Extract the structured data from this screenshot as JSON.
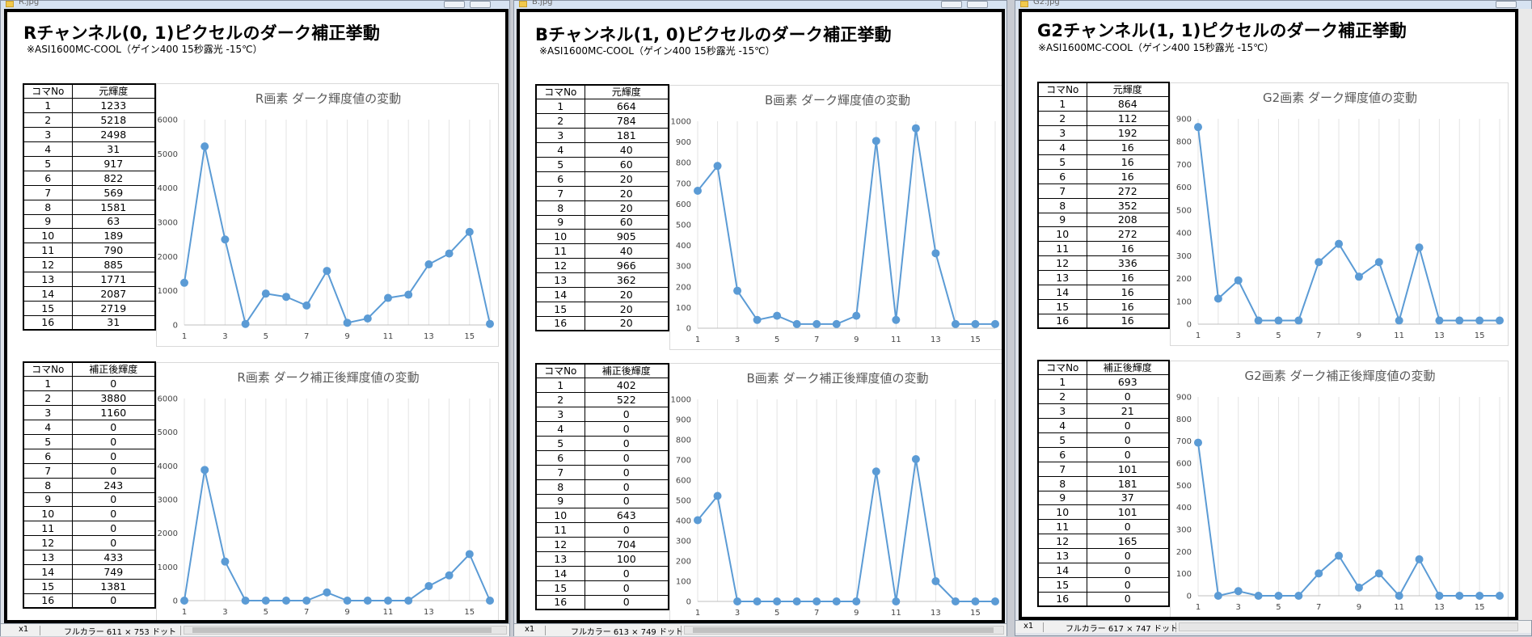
{
  "windows": [
    {
      "id": "r",
      "title": "R.jpg",
      "heading": "Rチャンネル(0, 1)ピクセルのダーク補正挙動",
      "subtitle": "※ASI1600MC-COOL（ゲイン400 15秒露光 -15℃）",
      "status": {
        "zoom": "x1",
        "info": "フルカラー  611 × 753 ドット"
      }
    },
    {
      "id": "b",
      "title": "B.jpg",
      "heading": "Bチャンネル(1, 0)ピクセルのダーク補正挙動",
      "subtitle": "※ASI1600MC-COOL（ゲイン400 15秒露光 -15℃）",
      "status": {
        "zoom": "x1",
        "info": "フルカラー  613 × 749 ドット"
      }
    },
    {
      "id": "g2",
      "title": "G2.jpg",
      "heading": "G2チャンネル(1, 1)ピクセルのダーク補正挙動",
      "subtitle": "※ASI1600MC-COOL（ゲイン400 15秒露光 -15℃）",
      "status": {
        "zoom": "x1",
        "info": "フルカラー  617 × 747 ドット"
      }
    }
  ],
  "tables": {
    "r_raw": {
      "h1": "コマNo",
      "h2": "元輝度"
    },
    "r_cor": {
      "h1": "コマNo",
      "h2": "補正後輝度"
    },
    "b_raw": {
      "h1": "コマNo",
      "h2": "元輝度"
    },
    "b_cor": {
      "h1": "コマNo",
      "h2": "補正後輝度"
    },
    "g2_raw": {
      "h1": "コマNo",
      "h2": "元輝度"
    },
    "g2_cor": {
      "h1": "コマNo",
      "h2": "補正後輝度"
    }
  },
  "chart_data": [
    {
      "id": "r_raw",
      "type": "line",
      "title": "R画素  ダーク輝度値の変動",
      "x": [
        1,
        2,
        3,
        4,
        5,
        6,
        7,
        8,
        9,
        10,
        11,
        12,
        13,
        14,
        15,
        16
      ],
      "values": [
        1233,
        5218,
        2498,
        31,
        917,
        822,
        569,
        1581,
        63,
        189,
        790,
        885,
        1771,
        2087,
        2719,
        31
      ],
      "ylim": [
        0,
        6000
      ],
      "yticks": [
        0,
        1000,
        2000,
        3000,
        4000,
        5000,
        6000
      ],
      "xticks": [
        1,
        3,
        5,
        7,
        9,
        11,
        13,
        15
      ],
      "grid": "vertical",
      "color": "#5b9bd5"
    },
    {
      "id": "r_cor",
      "type": "line",
      "title": "R画素  ダーク補正後輝度値の変動",
      "x": [
        1,
        2,
        3,
        4,
        5,
        6,
        7,
        8,
        9,
        10,
        11,
        12,
        13,
        14,
        15,
        16
      ],
      "values": [
        0,
        3880,
        1160,
        0,
        0,
        0,
        0,
        243,
        0,
        0,
        0,
        0,
        433,
        749,
        1381,
        0
      ],
      "ylim": [
        0,
        6000
      ],
      "yticks": [
        0,
        1000,
        2000,
        3000,
        4000,
        5000,
        6000
      ],
      "xticks": [
        1,
        3,
        5,
        7,
        9,
        11,
        13,
        15
      ],
      "grid": "vertical",
      "color": "#5b9bd5"
    },
    {
      "id": "b_raw",
      "type": "line",
      "title": "B画素  ダーク輝度値の変動",
      "x": [
        1,
        2,
        3,
        4,
        5,
        6,
        7,
        8,
        9,
        10,
        11,
        12,
        13,
        14,
        15,
        16
      ],
      "values": [
        664,
        784,
        181,
        40,
        60,
        20,
        20,
        20,
        60,
        905,
        40,
        966,
        362,
        20,
        20,
        20
      ],
      "ylim": [
        0,
        1000
      ],
      "yticks": [
        0,
        100,
        200,
        300,
        400,
        500,
        600,
        700,
        800,
        900,
        1000
      ],
      "xticks": [
        1,
        3,
        5,
        7,
        9,
        11,
        13,
        15
      ],
      "grid": "vertical",
      "color": "#5b9bd5"
    },
    {
      "id": "b_cor",
      "type": "line",
      "title": "B画素  ダーク補正後輝度値の変動",
      "x": [
        1,
        2,
        3,
        4,
        5,
        6,
        7,
        8,
        9,
        10,
        11,
        12,
        13,
        14,
        15,
        16
      ],
      "values": [
        402,
        522,
        0,
        0,
        0,
        0,
        0,
        0,
        0,
        643,
        0,
        704,
        100,
        0,
        0,
        0
      ],
      "ylim": [
        0,
        1000
      ],
      "yticks": [
        0,
        100,
        200,
        300,
        400,
        500,
        600,
        700,
        800,
        900,
        1000
      ],
      "xticks": [
        1,
        3,
        5,
        7,
        9,
        11,
        13,
        15
      ],
      "grid": "vertical",
      "color": "#5b9bd5"
    },
    {
      "id": "g2_raw",
      "type": "line",
      "title": "G2画素  ダーク輝度値の変動",
      "x": [
        1,
        2,
        3,
        4,
        5,
        6,
        7,
        8,
        9,
        10,
        11,
        12,
        13,
        14,
        15,
        16
      ],
      "values": [
        864,
        112,
        192,
        16,
        16,
        16,
        272,
        352,
        208,
        272,
        16,
        336,
        16,
        16,
        16,
        16
      ],
      "ylim": [
        0,
        900
      ],
      "yticks": [
        0,
        100,
        200,
        300,
        400,
        500,
        600,
        700,
        800,
        900
      ],
      "xticks": [
        1,
        3,
        5,
        7,
        9,
        11,
        13,
        15
      ],
      "grid": "vertical",
      "color": "#5b9bd5"
    },
    {
      "id": "g2_cor",
      "type": "line",
      "title": "G2画素  ダーク補正後輝度値の変動",
      "x": [
        1,
        2,
        3,
        4,
        5,
        6,
        7,
        8,
        9,
        10,
        11,
        12,
        13,
        14,
        15,
        16
      ],
      "values": [
        693,
        0,
        21,
        0,
        0,
        0,
        101,
        181,
        37,
        101,
        0,
        165,
        0,
        0,
        0,
        0
      ],
      "ylim": [
        0,
        900
      ],
      "yticks": [
        0,
        100,
        200,
        300,
        400,
        500,
        600,
        700,
        800,
        900
      ],
      "xticks": [
        1,
        3,
        5,
        7,
        9,
        11,
        13,
        15
      ],
      "grid": "vertical",
      "color": "#5b9bd5"
    }
  ]
}
